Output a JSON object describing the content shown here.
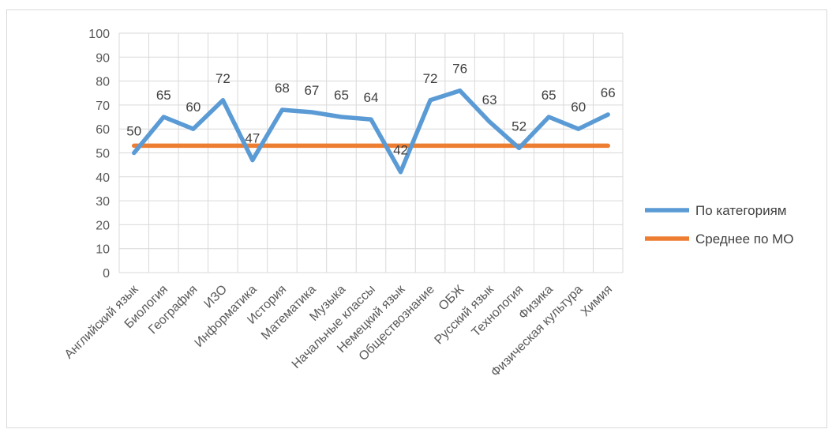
{
  "chart_data": {
    "type": "line",
    "title": "",
    "xlabel": "",
    "ylabel": "",
    "ylim": [
      0,
      100
    ],
    "yticks": [
      0,
      10,
      20,
      30,
      40,
      50,
      60,
      70,
      80,
      90,
      100
    ],
    "grid": true,
    "legend_position": "right",
    "categories": [
      "Английский язык",
      "Биология",
      "География",
      "ИЗО",
      "Информатика",
      "История",
      "Математика",
      "Музыка",
      "Начальные классы",
      "Немецкий язык",
      "Обществознание",
      "ОБЖ",
      "Русский язык",
      "Технология",
      "Физика",
      "Физическая культура",
      "Химия"
    ],
    "series": [
      {
        "name": "По категориям",
        "color": "#5b9bd5",
        "values": [
          50,
          65,
          60,
          72,
          47,
          68,
          67,
          65,
          64,
          42,
          72,
          76,
          63,
          52,
          65,
          60,
          66
        ],
        "data_labels": true
      },
      {
        "name": "Среднее по МО",
        "color": "#ed7d31",
        "values": [
          53,
          53,
          53,
          53,
          53,
          53,
          53,
          53,
          53,
          53,
          53,
          53,
          53,
          53,
          53,
          53,
          53
        ],
        "data_labels": false
      }
    ]
  }
}
